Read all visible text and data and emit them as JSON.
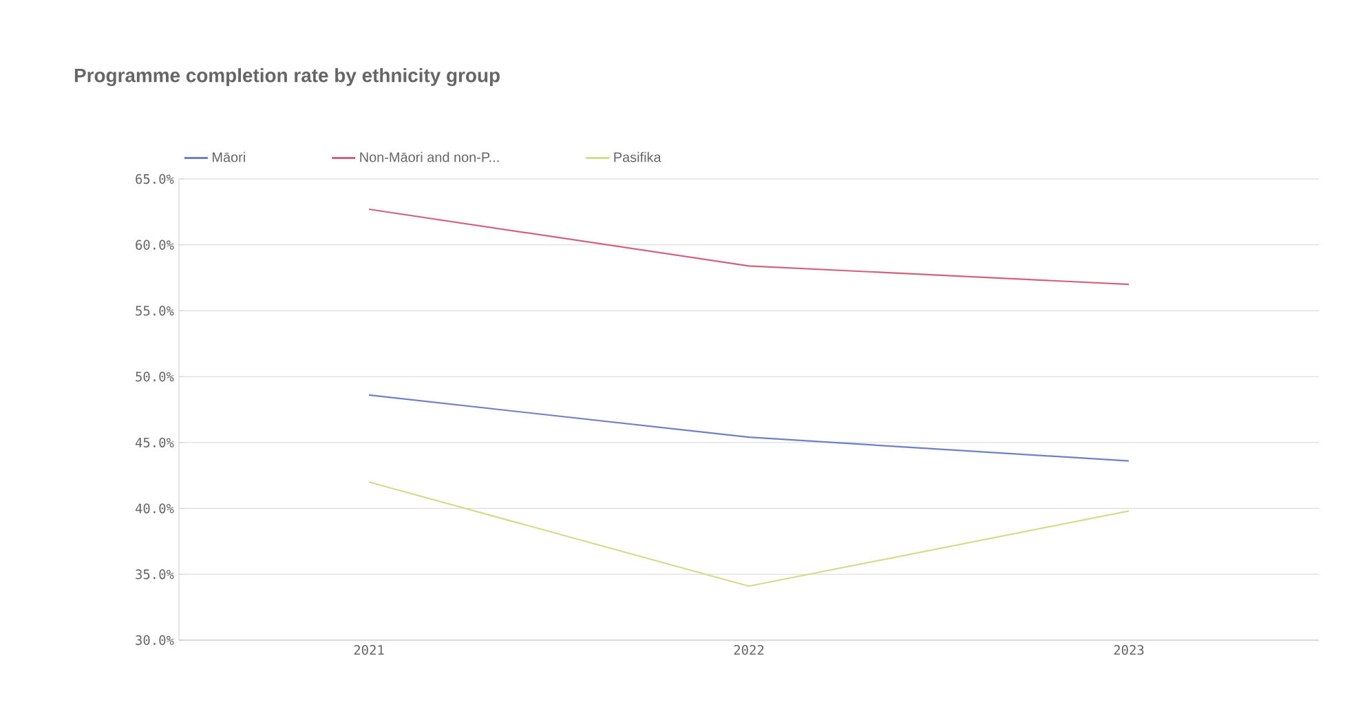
{
  "chart_data": {
    "type": "line",
    "title": "Programme completion rate by ethnicity group",
    "categories": [
      "2021",
      "2022",
      "2023"
    ],
    "series": [
      {
        "name": "Māori",
        "color": "#6e7fc7",
        "values": [
          48.6,
          45.4,
          43.6
        ]
      },
      {
        "name": "Non-Māori and non-P...",
        "color": "#d2607a",
        "values": [
          62.7,
          58.4,
          57.0
        ]
      },
      {
        "name": "Pasifika",
        "color": "#d4dc8c",
        "values": [
          42.0,
          34.1,
          39.8
        ]
      }
    ],
    "ylim": [
      30,
      65
    ],
    "yticks": [
      {
        "value": 30,
        "label": "30.0%"
      },
      {
        "value": 35,
        "label": "35.0%"
      },
      {
        "value": 40,
        "label": "40.0%"
      },
      {
        "value": 45,
        "label": "45.0%"
      },
      {
        "value": 50,
        "label": "50.0%"
      },
      {
        "value": 55,
        "label": "55.0%"
      },
      {
        "value": 60,
        "label": "60.0%"
      },
      {
        "value": 65,
        "label": "65.0%"
      }
    ],
    "grid": "y",
    "legend": "top left",
    "marker": "none",
    "line_style": "solid"
  }
}
